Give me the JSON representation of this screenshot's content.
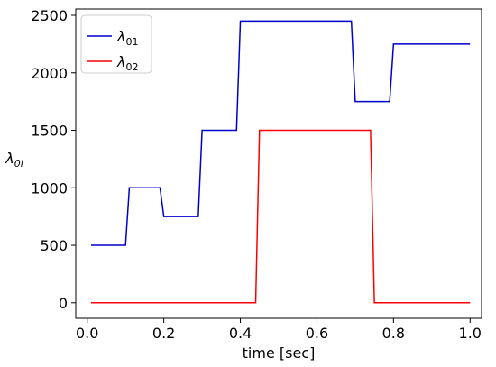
{
  "chart_data": {
    "type": "line",
    "xlabel": "time [sec]",
    "ylabel": "λ0i",
    "ylabel_main": "λ",
    "ylabel_sub": "0i",
    "xlim": [
      -0.03,
      1.03
    ],
    "ylim": [
      -135,
      2555
    ],
    "xticks": [
      0.0,
      0.2,
      0.4,
      0.6,
      0.8,
      1.0
    ],
    "xtick_labels": [
      "0.0",
      "0.2",
      "0.4",
      "0.6",
      "0.8",
      "1.0"
    ],
    "yticks": [
      0,
      500,
      1000,
      1500,
      2000,
      2500
    ],
    "ytick_labels": [
      "0",
      "500",
      "1000",
      "1500",
      "2000",
      "2500"
    ],
    "grid": false,
    "legend_position": "top-left",
    "series": [
      {
        "name": "λ01",
        "name_main": "λ",
        "name_sub": "01",
        "color": "#0000cc",
        "x": [
          0.01,
          0.1,
          0.11,
          0.19,
          0.2,
          0.29,
          0.3,
          0.39,
          0.4,
          0.69,
          0.7,
          0.79,
          0.8,
          1.0
        ],
        "y": [
          500,
          500,
          1000,
          1000,
          750,
          750,
          1500,
          1500,
          2450,
          2450,
          1750,
          1750,
          2250,
          2250
        ]
      },
      {
        "name": "λ02",
        "name_main": "λ",
        "name_sub": "02",
        "color": "#ff0000",
        "x": [
          0.01,
          0.44,
          0.45,
          0.74,
          0.75,
          1.0
        ],
        "y": [
          0,
          0,
          1500,
          1500,
          0,
          0
        ]
      }
    ]
  }
}
